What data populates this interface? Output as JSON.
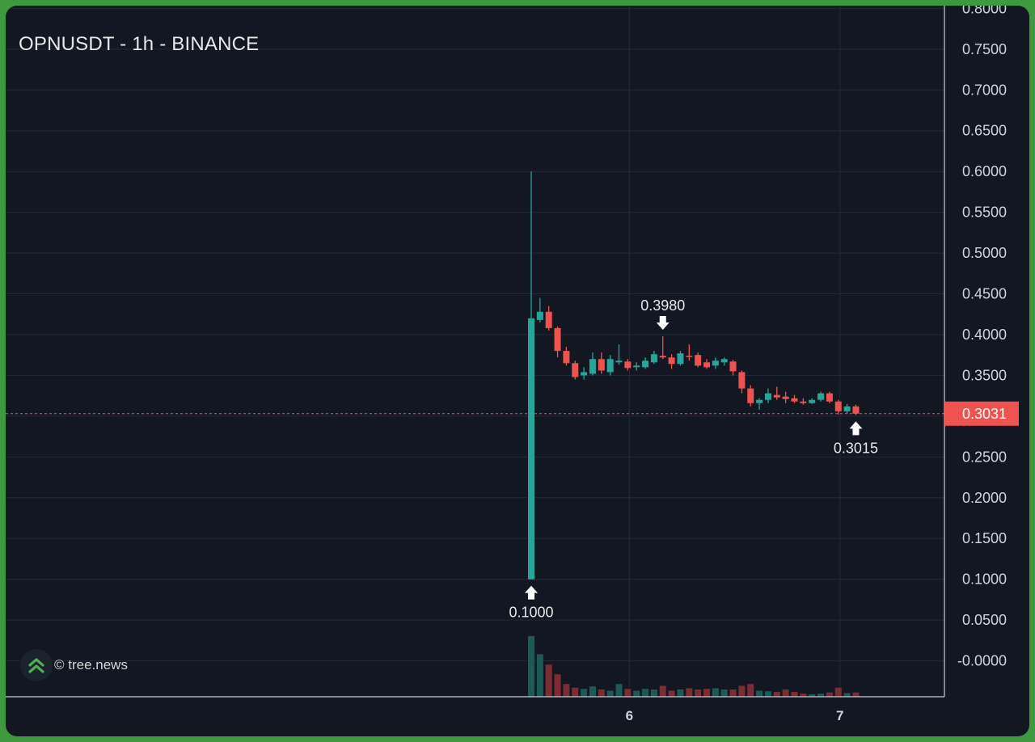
{
  "colors": {
    "background": "#131722",
    "frame_border": "#3f9a3f",
    "up": "#26a69a",
    "down": "#ef5350",
    "up_volume": "#1e5a55",
    "down_volume": "#7a2d33",
    "grid": "#232a38",
    "axis_text": "#d1d4dc",
    "price_line": "#ef5350"
  },
  "watermark": {
    "text": "© tree.news",
    "logo_icon": "double-chevron-up-icon"
  },
  "chart_data": {
    "type": "candlestick",
    "title": "OPNUSDT - 1h - BINANCE",
    "ylim": [
      -0.025,
      0.8
    ],
    "y_ticks": [
      "0.8000",
      "0.7500",
      "0.7000",
      "0.6500",
      "0.6000",
      "0.5500",
      "0.5000",
      "0.4500",
      "0.4000",
      "0.3500",
      "0.3000",
      "0.2500",
      "0.2000",
      "0.1500",
      "0.1000",
      "0.0500",
      "-0.0000"
    ],
    "x_ticks": [
      {
        "label": "6",
        "index": 11
      },
      {
        "label": "7",
        "index": 35
      }
    ],
    "grid": true,
    "last_price": {
      "label": "0.3031",
      "value": 0.3031
    },
    "annotations": [
      {
        "label": "0.1000",
        "value": 0.1,
        "index": 0,
        "direction": "up"
      },
      {
        "label": "0.3980",
        "value": 0.398,
        "index": 15,
        "direction": "down"
      },
      {
        "label": "0.3015",
        "value": 0.3015,
        "index": 37,
        "direction": "up"
      }
    ],
    "candles": [
      {
        "o": 0.1,
        "h": 0.6,
        "l": 0.1,
        "c": 0.42
      },
      {
        "o": 0.418,
        "h": 0.445,
        "l": 0.415,
        "c": 0.428
      },
      {
        "o": 0.428,
        "h": 0.435,
        "l": 0.405,
        "c": 0.408
      },
      {
        "o": 0.408,
        "h": 0.41,
        "l": 0.372,
        "c": 0.38
      },
      {
        "o": 0.38,
        "h": 0.385,
        "l": 0.362,
        "c": 0.365
      },
      {
        "o": 0.365,
        "h": 0.368,
        "l": 0.345,
        "c": 0.348
      },
      {
        "o": 0.35,
        "h": 0.36,
        "l": 0.345,
        "c": 0.354
      },
      {
        "o": 0.352,
        "h": 0.378,
        "l": 0.35,
        "c": 0.37
      },
      {
        "o": 0.37,
        "h": 0.378,
        "l": 0.352,
        "c": 0.356
      },
      {
        "o": 0.354,
        "h": 0.375,
        "l": 0.35,
        "c": 0.37
      },
      {
        "o": 0.366,
        "h": 0.388,
        "l": 0.363,
        "c": 0.368
      },
      {
        "o": 0.367,
        "h": 0.37,
        "l": 0.356,
        "c": 0.359
      },
      {
        "o": 0.36,
        "h": 0.366,
        "l": 0.356,
        "c": 0.362
      },
      {
        "o": 0.36,
        "h": 0.372,
        "l": 0.358,
        "c": 0.368
      },
      {
        "o": 0.366,
        "h": 0.38,
        "l": 0.364,
        "c": 0.376
      },
      {
        "o": 0.374,
        "h": 0.398,
        "l": 0.37,
        "c": 0.372
      },
      {
        "o": 0.372,
        "h": 0.376,
        "l": 0.358,
        "c": 0.364
      },
      {
        "o": 0.364,
        "h": 0.38,
        "l": 0.362,
        "c": 0.377
      },
      {
        "o": 0.374,
        "h": 0.388,
        "l": 0.368,
        "c": 0.373
      },
      {
        "o": 0.375,
        "h": 0.378,
        "l": 0.36,
        "c": 0.362
      },
      {
        "o": 0.366,
        "h": 0.37,
        "l": 0.358,
        "c": 0.36
      },
      {
        "o": 0.362,
        "h": 0.372,
        "l": 0.358,
        "c": 0.368
      },
      {
        "o": 0.366,
        "h": 0.372,
        "l": 0.362,
        "c": 0.37
      },
      {
        "o": 0.367,
        "h": 0.369,
        "l": 0.35,
        "c": 0.355
      },
      {
        "o": 0.354,
        "h": 0.356,
        "l": 0.328,
        "c": 0.334
      },
      {
        "o": 0.334,
        "h": 0.338,
        "l": 0.312,
        "c": 0.316
      },
      {
        "o": 0.316,
        "h": 0.322,
        "l": 0.308,
        "c": 0.32
      },
      {
        "o": 0.32,
        "h": 0.334,
        "l": 0.316,
        "c": 0.328
      },
      {
        "o": 0.326,
        "h": 0.336,
        "l": 0.32,
        "c": 0.323
      },
      {
        "o": 0.324,
        "h": 0.33,
        "l": 0.316,
        "c": 0.321
      },
      {
        "o": 0.322,
        "h": 0.326,
        "l": 0.316,
        "c": 0.318
      },
      {
        "o": 0.318,
        "h": 0.322,
        "l": 0.314,
        "c": 0.316
      },
      {
        "o": 0.316,
        "h": 0.322,
        "l": 0.315,
        "c": 0.32
      },
      {
        "o": 0.32,
        "h": 0.33,
        "l": 0.318,
        "c": 0.328
      },
      {
        "o": 0.328,
        "h": 0.33,
        "l": 0.316,
        "c": 0.318
      },
      {
        "o": 0.318,
        "h": 0.32,
        "l": 0.302,
        "c": 0.306
      },
      {
        "o": 0.306,
        "h": 0.315,
        "l": 0.303,
        "c": 0.312
      },
      {
        "o": 0.312,
        "h": 0.314,
        "l": 0.3015,
        "c": 0.3031
      }
    ],
    "volume": [
      {
        "v": 1.0,
        "up": true
      },
      {
        "v": 0.7,
        "up": true
      },
      {
        "v": 0.53,
        "down": true
      },
      {
        "v": 0.37,
        "down": true
      },
      {
        "v": 0.21,
        "down": true
      },
      {
        "v": 0.15,
        "down": true
      },
      {
        "v": 0.13,
        "up": true
      },
      {
        "v": 0.17,
        "up": true
      },
      {
        "v": 0.12,
        "down": true
      },
      {
        "v": 0.1,
        "up": true
      },
      {
        "v": 0.21,
        "up": true
      },
      {
        "v": 0.13,
        "down": true
      },
      {
        "v": 0.1,
        "up": true
      },
      {
        "v": 0.13,
        "up": true
      },
      {
        "v": 0.12,
        "up": true
      },
      {
        "v": 0.18,
        "down": true
      },
      {
        "v": 0.1,
        "down": true
      },
      {
        "v": 0.12,
        "up": true
      },
      {
        "v": 0.14,
        "down": true
      },
      {
        "v": 0.12,
        "down": true
      },
      {
        "v": 0.13,
        "down": true
      },
      {
        "v": 0.14,
        "up": true
      },
      {
        "v": 0.12,
        "up": true
      },
      {
        "v": 0.12,
        "down": true
      },
      {
        "v": 0.18,
        "down": true
      },
      {
        "v": 0.21,
        "down": true
      },
      {
        "v": 0.1,
        "up": true
      },
      {
        "v": 0.09,
        "up": true
      },
      {
        "v": 0.08,
        "down": true
      },
      {
        "v": 0.12,
        "down": true
      },
      {
        "v": 0.08,
        "down": true
      },
      {
        "v": 0.05,
        "down": true
      },
      {
        "v": 0.04,
        "up": true
      },
      {
        "v": 0.05,
        "up": true
      },
      {
        "v": 0.07,
        "down": true
      },
      {
        "v": 0.15,
        "down": true
      },
      {
        "v": 0.06,
        "up": true
      },
      {
        "v": 0.07,
        "down": true
      }
    ]
  }
}
